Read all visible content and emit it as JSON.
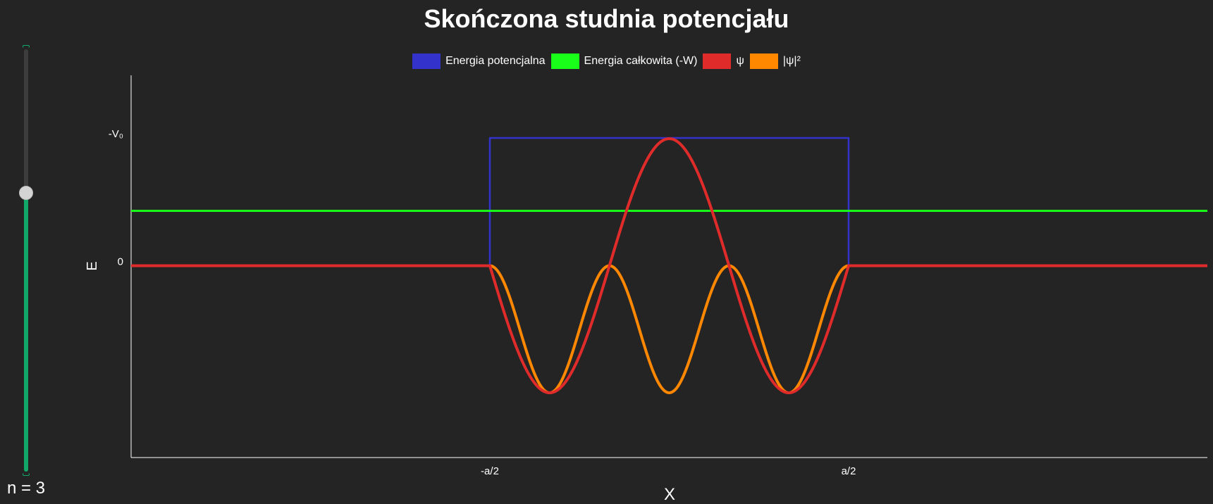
{
  "title": "Skończona studnia potencjału",
  "slider": {
    "label_prefix": "n = ",
    "value": 3,
    "fraction": 0.66
  },
  "colors": {
    "background": "#242424",
    "potential": "#3333cc",
    "total_energy": "#1aff1a",
    "psi": "#e02b2b",
    "psi_squared": "#ff8800",
    "slider_accent": "#12a86a"
  },
  "chart_data": {
    "type": "line",
    "title": "Skończona studnia potencjału",
    "xlabel": "X",
    "ylabel": "E",
    "xlim": [
      -1.5,
      1.5
    ],
    "ylim": [
      -1.5,
      1.5
    ],
    "x_ticks": [
      {
        "value": -0.5,
        "label": "-a/2"
      },
      {
        "value": 0.5,
        "label": "a/2"
      }
    ],
    "y_ticks": [
      {
        "value": 0,
        "label": "0"
      },
      {
        "value": -1,
        "label": "-V₀"
      }
    ],
    "grid": false,
    "legend_position": "top-center",
    "well": {
      "half_width": 0.5,
      "depth": 1
    },
    "total_energy": -0.43,
    "series": [
      {
        "name": "Energia potencjalna",
        "color": "#3333cc",
        "kind": "potential"
      },
      {
        "name": "Energia całkowita (-W)",
        "color": "#1aff1a",
        "kind": "energy"
      },
      {
        "name": "ψ",
        "color": "#e02b2b",
        "kind": "psi"
      },
      {
        "name": "|ψ|²",
        "color": "#ff8800",
        "kind": "psi_squared"
      }
    ]
  }
}
